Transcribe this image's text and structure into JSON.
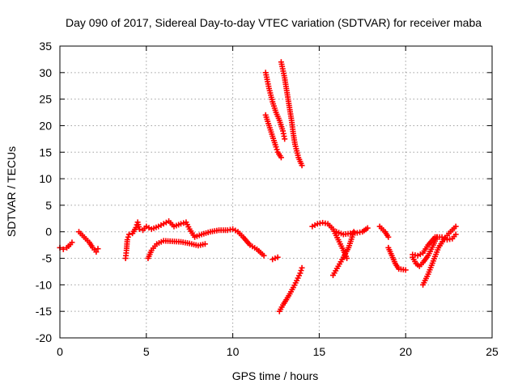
{
  "chart_data": {
    "type": "scatter",
    "title": "Day 090 of 2017, Sidereal Day-to-day VTEC variation (SDTVAR) for receiver maba",
    "xlabel": "GPS time / hours",
    "ylabel": "SDTVAR / TECUs",
    "xlim": [
      0,
      25
    ],
    "ylim": [
      -20,
      35
    ],
    "xticks": [
      "0",
      "5",
      "10",
      "15",
      "20",
      "25"
    ],
    "yticks": [
      "-20",
      "-15",
      "-10",
      "-5",
      "0",
      "5",
      "10",
      "15",
      "20",
      "25",
      "30",
      "35"
    ],
    "grid": true,
    "marker": "+",
    "color": "#ff0000",
    "series": [
      {
        "name": "s1",
        "points": [
          [
            0.0,
            -3.0
          ],
          [
            0.2,
            -3.3
          ],
          [
            0.4,
            -3.0
          ],
          [
            0.6,
            -2.4
          ],
          [
            0.7,
            -2.0
          ]
        ]
      },
      {
        "name": "s2",
        "points": [
          [
            1.1,
            0.0
          ],
          [
            1.4,
            -1.0
          ],
          [
            1.7,
            -2.0
          ],
          [
            1.9,
            -3.0
          ],
          [
            2.1,
            -3.8
          ],
          [
            2.2,
            -3.2
          ]
        ]
      },
      {
        "name": "s3",
        "points": [
          [
            3.8,
            -5.0
          ],
          [
            3.85,
            -3.5
          ],
          [
            3.9,
            -1.5
          ],
          [
            4.0,
            -0.5
          ],
          [
            4.2,
            -0.3
          ],
          [
            4.4,
            0.8
          ],
          [
            4.5,
            1.8
          ],
          [
            4.6,
            0.5
          ],
          [
            4.8,
            0.3
          ],
          [
            5.0,
            1.0
          ],
          [
            5.3,
            0.5
          ],
          [
            5.7,
            1.0
          ],
          [
            6.0,
            1.5
          ],
          [
            6.3,
            2.0
          ],
          [
            6.6,
            1.0
          ],
          [
            7.0,
            1.5
          ],
          [
            7.3,
            1.8
          ],
          [
            7.5,
            0.5
          ],
          [
            7.8,
            -1.0
          ],
          [
            8.2,
            -0.5
          ],
          [
            8.7,
            0.0
          ],
          [
            9.2,
            0.3
          ],
          [
            9.7,
            0.3
          ],
          [
            10.0,
            0.5
          ],
          [
            10.3,
            0.0
          ],
          [
            10.6,
            -1.0
          ],
          [
            11.0,
            -2.5
          ],
          [
            11.4,
            -3.3
          ],
          [
            11.8,
            -4.5
          ]
        ]
      },
      {
        "name": "s4",
        "points": [
          [
            5.1,
            -5.0
          ],
          [
            5.3,
            -3.5
          ],
          [
            5.6,
            -2.3
          ],
          [
            6.0,
            -1.7
          ],
          [
            6.5,
            -1.8
          ],
          [
            7.0,
            -1.9
          ],
          [
            7.5,
            -2.2
          ],
          [
            8.0,
            -2.6
          ],
          [
            8.4,
            -2.3
          ]
        ]
      },
      {
        "name": "s5",
        "points": [
          [
            12.3,
            -5.2
          ],
          [
            12.6,
            -4.8
          ]
        ]
      },
      {
        "name": "s6",
        "points": [
          [
            12.7,
            -15.0
          ],
          [
            12.9,
            -13.8
          ],
          [
            13.1,
            -12.8
          ],
          [
            13.3,
            -11.7
          ],
          [
            13.5,
            -10.5
          ],
          [
            13.7,
            -9.2
          ],
          [
            13.9,
            -7.8
          ],
          [
            14.0,
            -6.8
          ]
        ]
      },
      {
        "name": "s7",
        "points": [
          [
            11.9,
            30.0
          ],
          [
            12.1,
            27.0
          ],
          [
            12.3,
            24.5
          ],
          [
            12.5,
            22.5
          ],
          [
            12.7,
            21.0
          ],
          [
            12.9,
            19.0
          ],
          [
            13.0,
            17.5
          ]
        ]
      },
      {
        "name": "s8",
        "points": [
          [
            11.9,
            22.0
          ],
          [
            12.1,
            20.0
          ],
          [
            12.3,
            18.0
          ],
          [
            12.5,
            16.0
          ],
          [
            12.6,
            15.0
          ],
          [
            12.8,
            14.0
          ]
        ]
      },
      {
        "name": "s9",
        "points": [
          [
            12.8,
            32.0
          ],
          [
            13.0,
            29.0
          ],
          [
            13.2,
            25.0
          ],
          [
            13.4,
            21.0
          ],
          [
            13.5,
            18.5
          ],
          [
            13.6,
            16.5
          ],
          [
            13.8,
            14.0
          ],
          [
            14.0,
            12.5
          ]
        ]
      },
      {
        "name": "s10",
        "points": [
          [
            14.6,
            1.0
          ],
          [
            14.9,
            1.5
          ],
          [
            15.2,
            1.7
          ],
          [
            15.5,
            1.5
          ],
          [
            15.8,
            0.5
          ],
          [
            16.1,
            -1.5
          ],
          [
            16.4,
            -3.5
          ],
          [
            16.6,
            -5.0
          ]
        ]
      },
      {
        "name": "s11",
        "points": [
          [
            15.8,
            -8.2
          ],
          [
            16.1,
            -6.5
          ],
          [
            16.4,
            -4.8
          ],
          [
            16.7,
            -3.0
          ],
          [
            16.9,
            -1.0
          ],
          [
            17.0,
            0.0
          ]
        ]
      },
      {
        "name": "s12",
        "points": [
          [
            16.0,
            0.0
          ],
          [
            16.4,
            -0.5
          ],
          [
            16.8,
            -0.3
          ],
          [
            17.2,
            -0.2
          ],
          [
            17.5,
            0.0
          ],
          [
            17.8,
            0.7
          ]
        ]
      },
      {
        "name": "s13",
        "points": [
          [
            18.5,
            1.0
          ],
          [
            18.8,
            0.0
          ],
          [
            19.0,
            -1.0
          ]
        ]
      },
      {
        "name": "s14",
        "points": [
          [
            19.0,
            -3.0
          ],
          [
            19.2,
            -4.5
          ],
          [
            19.4,
            -6.0
          ],
          [
            19.6,
            -7.0
          ],
          [
            20.0,
            -7.2
          ]
        ]
      },
      {
        "name": "s15",
        "points": [
          [
            20.4,
            -4.3
          ],
          [
            20.7,
            -4.5
          ],
          [
            21.0,
            -4.0
          ],
          [
            21.3,
            -2.5
          ],
          [
            21.7,
            -1.0
          ],
          [
            22.1,
            -1.0
          ],
          [
            22.4,
            -1.5
          ],
          [
            22.7,
            -1.3
          ],
          [
            22.9,
            -0.5
          ]
        ]
      },
      {
        "name": "s16",
        "points": [
          [
            20.4,
            -4.8
          ],
          [
            20.6,
            -6.0
          ],
          [
            20.8,
            -6.5
          ],
          [
            21.0,
            -5.8
          ],
          [
            21.3,
            -4.5
          ],
          [
            21.6,
            -2.5
          ],
          [
            21.8,
            -1.0
          ]
        ]
      },
      {
        "name": "s17",
        "points": [
          [
            21.0,
            -10.0
          ],
          [
            21.3,
            -8.0
          ],
          [
            21.6,
            -5.5
          ],
          [
            21.9,
            -3.0
          ],
          [
            22.2,
            -1.5
          ],
          [
            22.5,
            -0.3
          ],
          [
            22.9,
            1.0
          ]
        ]
      }
    ]
  }
}
